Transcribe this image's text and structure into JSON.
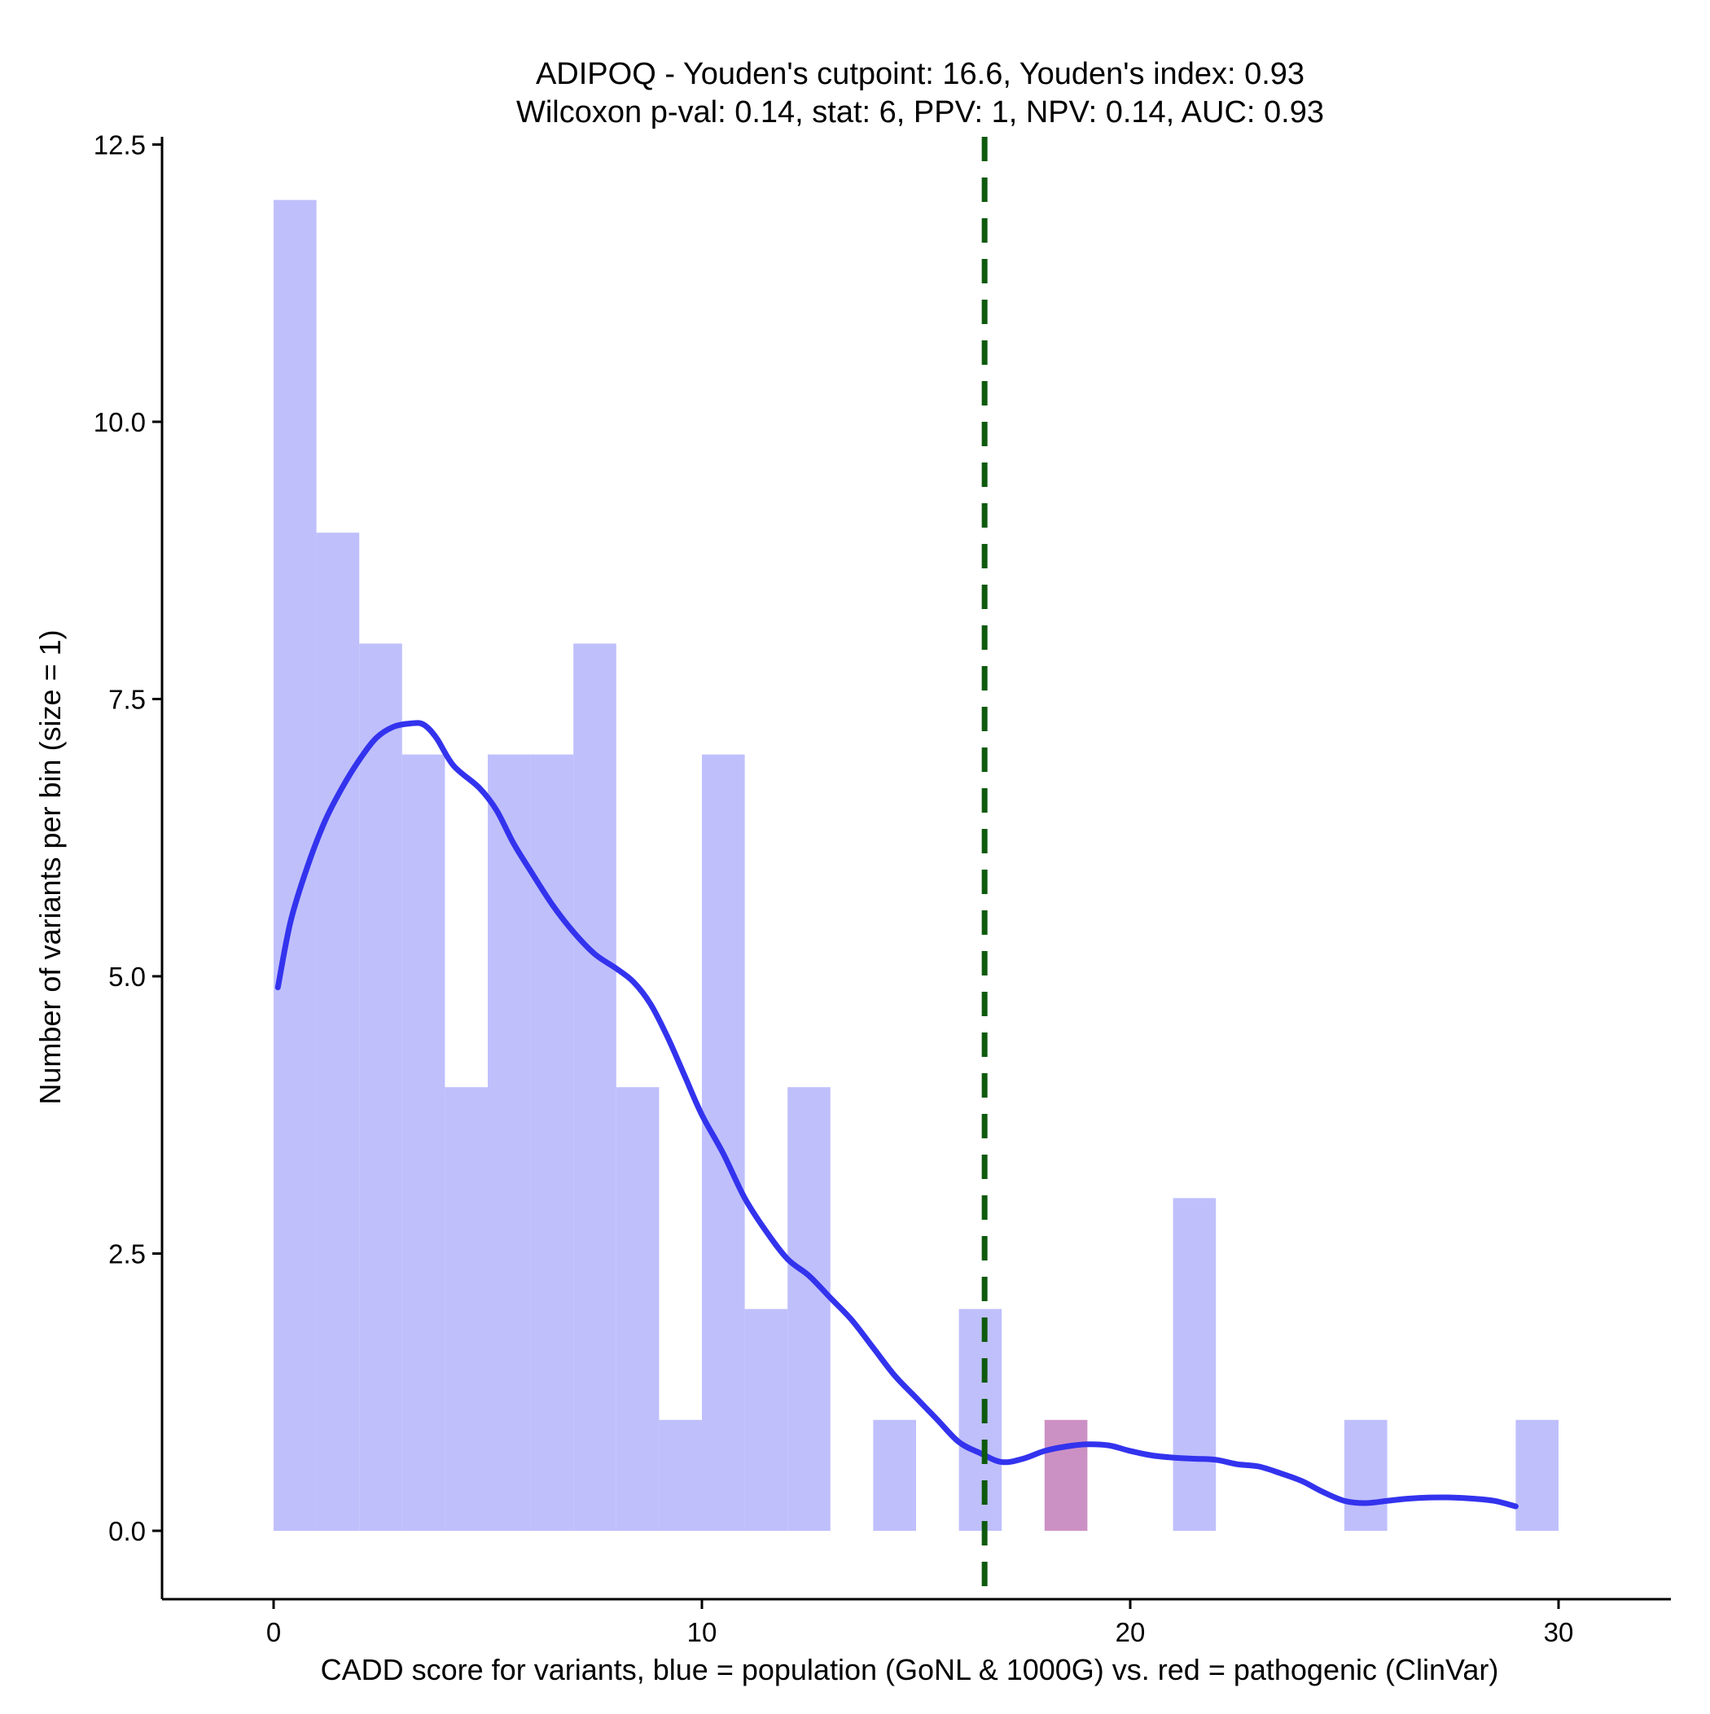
{
  "chart_data": {
    "type": "bar",
    "title_line1": "ADIPOQ - Youden's cutpoint: 16.6, Youden's index: 0.93",
    "title_line2": "Wilcoxon p-val: 0.14, stat: 6, PPV: 1, NPV: 0.14, AUC: 0.93",
    "xlabel": "CADD score for variants, blue = population (GoNL & 1000G) vs. red = pathogenic (ClinVar)",
    "ylabel": "Number of variants per bin (size = 1)",
    "xlim": [
      -2.6,
      32.6
    ],
    "ylim": [
      -0.6,
      12.7
    ],
    "x_ticks": [
      0,
      10,
      20,
      30
    ],
    "x_tick_labels": [
      "0",
      "10",
      "20",
      "30"
    ],
    "y_ticks": [
      0,
      2.5,
      5,
      7.5,
      10,
      12.5
    ],
    "y_tick_labels": [
      "0.0",
      "2.5",
      "5.0",
      "7.5",
      "10.0",
      "12.5"
    ],
    "bin_width": 1,
    "grid": false,
    "series": [
      {
        "name": "population (GoNL & 1000G)",
        "color": "#bfbffc",
        "bins": [
          {
            "x_start": 0,
            "count": 12
          },
          {
            "x_start": 1,
            "count": 9
          },
          {
            "x_start": 2,
            "count": 8
          },
          {
            "x_start": 3,
            "count": 7
          },
          {
            "x_start": 4,
            "count": 4
          },
          {
            "x_start": 5,
            "count": 7
          },
          {
            "x_start": 6,
            "count": 7
          },
          {
            "x_start": 7,
            "count": 8
          },
          {
            "x_start": 8,
            "count": 4
          },
          {
            "x_start": 9,
            "count": 1
          },
          {
            "x_start": 10,
            "count": 7
          },
          {
            "x_start": 11,
            "count": 2
          },
          {
            "x_start": 12,
            "count": 4
          },
          {
            "x_start": 14,
            "count": 1
          },
          {
            "x_start": 16,
            "count": 2
          },
          {
            "x_start": 21,
            "count": 3
          },
          {
            "x_start": 25,
            "count": 1
          },
          {
            "x_start": 29,
            "count": 1
          }
        ]
      },
      {
        "name": "pathogenic (ClinVar)",
        "color": "#cc91c4",
        "bins": [
          {
            "x_start": 18,
            "count": 1
          }
        ]
      }
    ],
    "density_curve": {
      "color": "#3333ee",
      "points": [
        [
          0.1,
          4.9
        ],
        [
          0.4,
          5.5
        ],
        [
          0.8,
          6.0
        ],
        [
          1.2,
          6.4
        ],
        [
          1.6,
          6.7
        ],
        [
          2.0,
          6.95
        ],
        [
          2.4,
          7.15
        ],
        [
          2.8,
          7.25
        ],
        [
          3.2,
          7.28
        ],
        [
          3.5,
          7.27
        ],
        [
          3.8,
          7.15
        ],
        [
          4.2,
          6.9
        ],
        [
          4.8,
          6.7
        ],
        [
          5.2,
          6.5
        ],
        [
          5.6,
          6.2
        ],
        [
          6.0,
          5.95
        ],
        [
          6.5,
          5.65
        ],
        [
          7.0,
          5.4
        ],
        [
          7.5,
          5.2
        ],
        [
          8.0,
          5.07
        ],
        [
          8.4,
          4.95
        ],
        [
          8.8,
          4.75
        ],
        [
          9.2,
          4.45
        ],
        [
          9.6,
          4.1
        ],
        [
          10.0,
          3.75
        ],
        [
          10.5,
          3.4
        ],
        [
          11.0,
          3.0
        ],
        [
          11.5,
          2.7
        ],
        [
          12.0,
          2.45
        ],
        [
          12.5,
          2.3
        ],
        [
          13.0,
          2.1
        ],
        [
          13.5,
          1.9
        ],
        [
          14.0,
          1.65
        ],
        [
          14.5,
          1.4
        ],
        [
          15.0,
          1.2
        ],
        [
          15.5,
          1.0
        ],
        [
          16.0,
          0.8
        ],
        [
          16.5,
          0.7
        ],
        [
          17.0,
          0.62
        ],
        [
          17.5,
          0.65
        ],
        [
          18.0,
          0.72
        ],
        [
          18.5,
          0.76
        ],
        [
          19.0,
          0.78
        ],
        [
          19.5,
          0.77
        ],
        [
          20.0,
          0.72
        ],
        [
          20.5,
          0.68
        ],
        [
          21.0,
          0.66
        ],
        [
          21.5,
          0.65
        ],
        [
          22.0,
          0.64
        ],
        [
          22.5,
          0.6
        ],
        [
          23.0,
          0.58
        ],
        [
          23.5,
          0.52
        ],
        [
          24.0,
          0.45
        ],
        [
          24.5,
          0.35
        ],
        [
          25.0,
          0.27
        ],
        [
          25.5,
          0.25
        ],
        [
          26.0,
          0.27
        ],
        [
          26.5,
          0.29
        ],
        [
          27.0,
          0.3
        ],
        [
          27.5,
          0.3
        ],
        [
          28.0,
          0.29
        ],
        [
          28.5,
          0.27
        ],
        [
          29.0,
          0.22
        ]
      ]
    },
    "cutpoint": {
      "x": 16.6,
      "color": "#0e5a0e",
      "style": "dashed"
    }
  }
}
